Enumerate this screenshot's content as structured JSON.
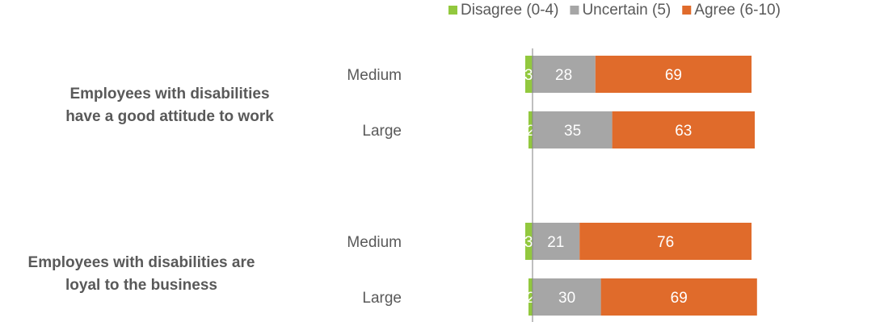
{
  "chart_data": {
    "type": "bar",
    "orientation": "horizontal",
    "stacked": true,
    "legend_position": "top-right",
    "grid": false,
    "xlim": [
      0,
      100
    ],
    "groups": [
      {
        "label_lines": [
          "Employees  with disabilities",
          "have a good attitude to work"
        ],
        "categories": [
          "Medium",
          "Large"
        ]
      },
      {
        "label_lines": [
          "Employees  with disabilities are",
          "loyal to the business"
        ],
        "categories": [
          "Medium",
          "Large"
        ]
      }
    ],
    "series": [
      {
        "name": "Disagree (0-4)",
        "color": "#92c83e",
        "values": [
          3,
          2,
          3,
          2
        ]
      },
      {
        "name": "Uncertain (5)",
        "color": "#a6a6a6",
        "values": [
          28,
          35,
          21,
          30
        ]
      },
      {
        "name": "Agree (6-10)",
        "color": "#e06b2b",
        "values": [
          69,
          63,
          76,
          69
        ]
      }
    ]
  }
}
